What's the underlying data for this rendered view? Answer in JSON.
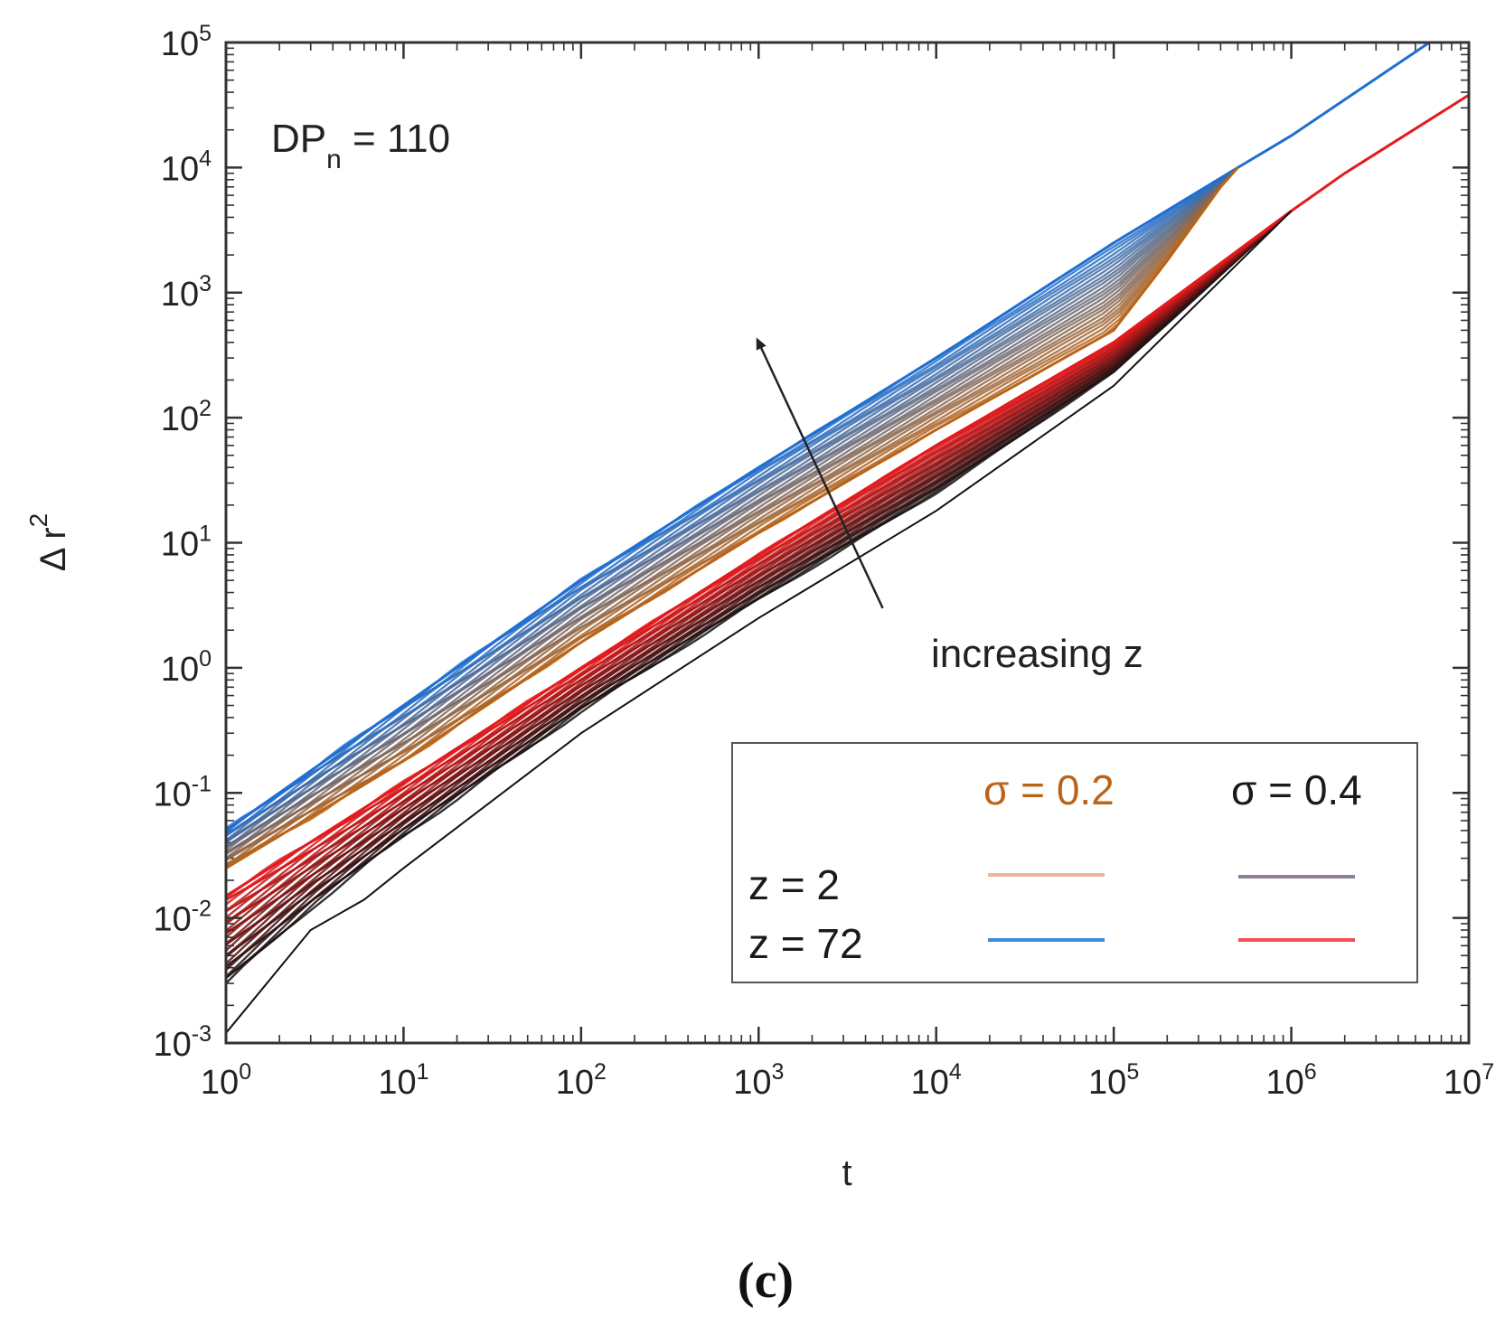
{
  "chart_data": {
    "type": "line",
    "scale": {
      "x": "log",
      "y": "log"
    },
    "xlim": [
      1,
      10000000
    ],
    "ylim": [
      0.001,
      100000
    ],
    "xlabel": "t",
    "ylabel": "Δ r",
    "ylabel_exponent": "2",
    "x_ticks": [
      {
        "value": 1,
        "base": "10",
        "exp": "0"
      },
      {
        "value": 10,
        "base": "10",
        "exp": "1"
      },
      {
        "value": 100,
        "base": "10",
        "exp": "2"
      },
      {
        "value": 1000,
        "base": "10",
        "exp": "3"
      },
      {
        "value": 10000,
        "base": "10",
        "exp": "4"
      },
      {
        "value": 100000,
        "base": "10",
        "exp": "5"
      },
      {
        "value": 1000000,
        "base": "10",
        "exp": "6"
      },
      {
        "value": 10000000,
        "base": "10",
        "exp": "7"
      }
    ],
    "y_ticks": [
      {
        "value": 0.001,
        "base": "10",
        "exp": "-3"
      },
      {
        "value": 0.01,
        "base": "10",
        "exp": "-2"
      },
      {
        "value": 0.1,
        "base": "10",
        "exp": "-1"
      },
      {
        "value": 1,
        "base": "10",
        "exp": "0"
      },
      {
        "value": 10,
        "base": "10",
        "exp": "1"
      },
      {
        "value": 100,
        "base": "10",
        "exp": "2"
      },
      {
        "value": 1000,
        "base": "10",
        "exp": "3"
      },
      {
        "value": 10000,
        "base": "10",
        "exp": "4"
      },
      {
        "value": 100000,
        "base": "10",
        "exp": "5"
      }
    ],
    "annotations": {
      "dp_label": "DP",
      "dp_subscript": "n",
      "dp_value": " = 110",
      "arrow_label": "increasing z",
      "arrow_from": {
        "t": 5000,
        "y": 3
      },
      "arrow_to": {
        "t": 1000,
        "y": 400
      }
    },
    "legend": {
      "position": "lower-right",
      "col_headers": [
        "σ = 0.2",
        "σ = 0.4"
      ],
      "col_colors": [
        "#b8651a",
        "#1a1a1a"
      ],
      "rows": [
        {
          "label": "z = 2",
          "colors": [
            "#f0b49a",
            "#8e7f93"
          ]
        },
        {
          "label": "z = 72",
          "colors": [
            "#3c8bd8",
            "#f05055"
          ]
        }
      ]
    },
    "series": [
      {
        "name": "sigma 0.2, z = 72",
        "color": "#1f6fd1",
        "points": [
          [
            1,
            0.05
          ],
          [
            10,
            0.5
          ],
          [
            100,
            5
          ],
          [
            1000,
            40
          ],
          [
            10000,
            300
          ],
          [
            100000,
            2500
          ],
          [
            500000,
            10000
          ],
          [
            1000000,
            18000
          ],
          [
            6000000,
            100000
          ]
        ]
      },
      {
        "name": "sigma 0.2, z = 2",
        "color": "#b8651a",
        "points": [
          [
            1,
            0.025
          ],
          [
            10,
            0.18
          ],
          [
            100,
            1.6
          ],
          [
            1000,
            12
          ],
          [
            10000,
            80
          ],
          [
            100000,
            500
          ],
          [
            200000,
            1800
          ],
          [
            400000,
            7000
          ],
          [
            500000,
            10000
          ]
        ]
      },
      {
        "name": "sigma 0.4, z = 72",
        "color": "#e41a1c",
        "points": [
          [
            1,
            0.015
          ],
          [
            10,
            0.12
          ],
          [
            100,
            1
          ],
          [
            1000,
            8
          ],
          [
            10000,
            60
          ],
          [
            100000,
            400
          ],
          [
            1000000,
            4500
          ],
          [
            2000000,
            9000
          ],
          [
            10000000,
            38000
          ]
        ]
      },
      {
        "name": "sigma 0.4, z = 2",
        "color": "#111111",
        "points": [
          [
            1,
            0.0012
          ],
          [
            3,
            0.008
          ],
          [
            6,
            0.014
          ],
          [
            10,
            0.025
          ],
          [
            100,
            0.3
          ],
          [
            1000,
            2.5
          ],
          [
            10000,
            18
          ],
          [
            100000,
            180
          ],
          [
            1000000,
            4500
          ]
        ]
      }
    ],
    "bundles": [
      {
        "name": "sigma 0.2 bundle",
        "lines": 24,
        "start": {
          "color": "#b8651a",
          "points": [
            [
              1,
              0.025
            ],
            [
              10,
              0.18
            ],
            [
              100,
              1.6
            ],
            [
              1000,
              12
            ],
            [
              10000,
              80
            ],
            [
              100000,
              500
            ],
            [
              200000,
              1800
            ],
            [
              400000,
              7000
            ],
            [
              500000,
              10000
            ]
          ]
        },
        "end": {
          "color": "#1f6fd1",
          "points": [
            [
              1,
              0.05
            ],
            [
              10,
              0.5
            ],
            [
              100,
              5
            ],
            [
              1000,
              40
            ],
            [
              10000,
              300
            ],
            [
              100000,
              2500
            ],
            [
              500000,
              10000
            ]
          ]
        }
      },
      {
        "name": "sigma 0.4 bundle",
        "lines": 30,
        "start": {
          "color": "#111111",
          "points": [
            [
              1,
              0.003
            ],
            [
              3,
              0.012
            ],
            [
              10,
              0.045
            ],
            [
              100,
              0.45
            ],
            [
              1000,
              3.5
            ],
            [
              10000,
              25
            ],
            [
              100000,
              230
            ],
            [
              1000000,
              4500
            ]
          ]
        },
        "end": {
          "color": "#e41a1c",
          "points": [
            [
              1,
              0.015
            ],
            [
              10,
              0.12
            ],
            [
              100,
              1
            ],
            [
              1000,
              8
            ],
            [
              10000,
              60
            ],
            [
              100000,
              400
            ],
            [
              1000000,
              4500
            ]
          ]
        }
      }
    ]
  },
  "caption": "(c)"
}
